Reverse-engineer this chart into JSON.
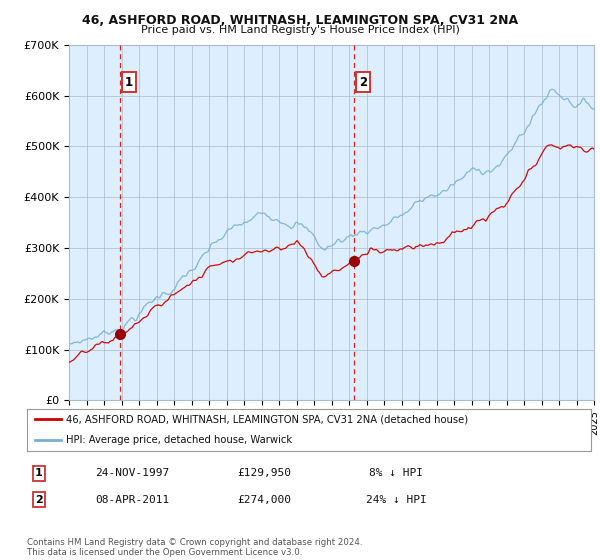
{
  "title1": "46, ASHFORD ROAD, WHITNASH, LEAMINGTON SPA, CV31 2NA",
  "title2": "Price paid vs. HM Land Registry's House Price Index (HPI)",
  "ylim": [
    0,
    700000
  ],
  "yticks": [
    0,
    100000,
    200000,
    300000,
    400000,
    500000,
    600000,
    700000
  ],
  "ytick_labels": [
    "£0",
    "£100K",
    "£200K",
    "£300K",
    "£400K",
    "£500K",
    "£600K",
    "£700K"
  ],
  "xmin": 1995.0,
  "xmax": 2025.0,
  "sale1_date": 1997.9,
  "sale1_price": 129950,
  "sale2_date": 2011.27,
  "sale2_price": 274000,
  "legend_line1": "46, ASHFORD ROAD, WHITNASH, LEAMINGTON SPA, CV31 2NA (detached house)",
  "legend_line2": "HPI: Average price, detached house, Warwick",
  "table_row1": [
    "1",
    "24-NOV-1997",
    "£129,950",
    "8% ↓ HPI"
  ],
  "table_row2": [
    "2",
    "08-APR-2011",
    "£274,000",
    "24% ↓ HPI"
  ],
  "footnote": "Contains HM Land Registry data © Crown copyright and database right 2024.\nThis data is licensed under the Open Government Licence v3.0.",
  "line_color_red": "#cc0000",
  "line_color_blue": "#7aafd4",
  "marker_color_red": "#990000",
  "vline_color": "#cc0000",
  "bg_chart": "#ddeeff",
  "background_color": "#ffffff",
  "grid_color": "#aabbcc"
}
